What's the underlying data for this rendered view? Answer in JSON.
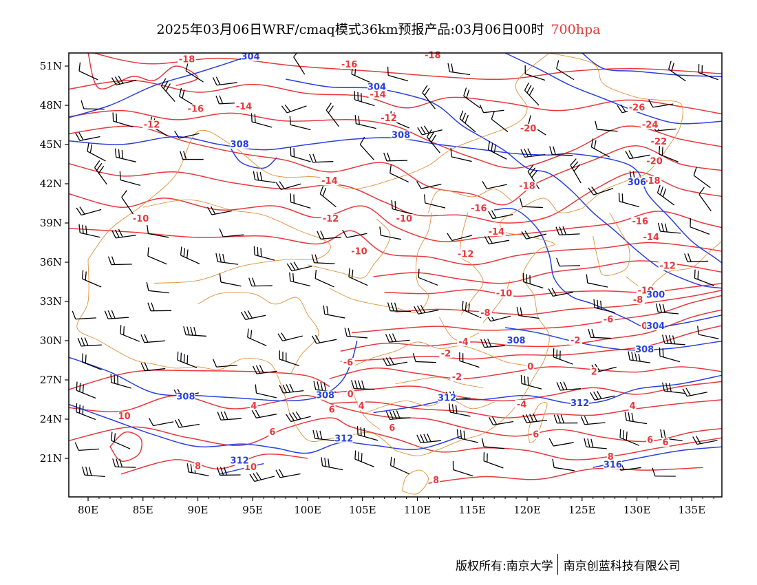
{
  "title": {
    "main": "2025年03月06日WRF/cmaq模式36km预报产品:03月06日00时",
    "level": "700hpa"
  },
  "axes": {
    "x_ticks": [
      "80E",
      "85E",
      "90E",
      "95E",
      "100E",
      "105E",
      "110E",
      "115E",
      "120E",
      "125E",
      "130E",
      "135E"
    ],
    "y_ticks": [
      "51N",
      "48N",
      "45N",
      "42N",
      "39N",
      "36N",
      "33N",
      "30N",
      "27N",
      "24N",
      "21N"
    ]
  },
  "colors": {
    "temperature": "#e8383c",
    "height": "#2a3fe0",
    "boundary": "#e0903a",
    "wind": "#000000"
  },
  "temperature_labels": [
    {
      "text": "-18",
      "lon": 89.0,
      "lat": 51.4
    },
    {
      "text": "-16",
      "lon": 89.8,
      "lat": 47.6
    },
    {
      "text": "-14",
      "lon": 94.2,
      "lat": 47.8
    },
    {
      "text": "-12",
      "lon": 85.8,
      "lat": 46.4
    },
    {
      "text": "-14",
      "lon": 102.0,
      "lat": 42.1
    },
    {
      "text": "-12",
      "lon": 102.1,
      "lat": 39.2
    },
    {
      "text": "-10",
      "lon": 84.8,
      "lat": 39.2
    },
    {
      "text": "-10",
      "lon": 108.8,
      "lat": 39.2
    },
    {
      "text": "-16",
      "lon": 103.8,
      "lat": 51.0
    },
    {
      "text": "-14",
      "lon": 106.4,
      "lat": 48.7
    },
    {
      "text": "-12",
      "lon": 107.4,
      "lat": 46.9
    },
    {
      "text": "-18",
      "lon": 111.4,
      "lat": 51.7
    },
    {
      "text": "-20",
      "lon": 120.1,
      "lat": 46.1
    },
    {
      "text": "-18",
      "lon": 120.0,
      "lat": 41.7
    },
    {
      "text": "-16",
      "lon": 115.6,
      "lat": 40.0
    },
    {
      "text": "-14",
      "lon": 117.2,
      "lat": 38.2
    },
    {
      "text": "-12",
      "lon": 114.4,
      "lat": 36.5
    },
    {
      "text": "-10",
      "lon": 104.7,
      "lat": 36.7
    },
    {
      "text": "-10",
      "lon": 117.9,
      "lat": 33.5
    },
    {
      "text": "-8",
      "lon": 116.2,
      "lat": 32.0
    },
    {
      "text": "-6",
      "lon": 127.4,
      "lat": 31.5
    },
    {
      "text": "-4",
      "lon": 114.2,
      "lat": 29.8
    },
    {
      "text": "-2",
      "lon": 112.6,
      "lat": 28.9
    },
    {
      "text": "0",
      "lon": 120.3,
      "lat": 27.9
    },
    {
      "text": "-2",
      "lon": 124.4,
      "lat": 29.9
    },
    {
      "text": "-2",
      "lon": 113.6,
      "lat": 27.1
    },
    {
      "text": "2",
      "lon": 126.1,
      "lat": 27.5
    },
    {
      "text": "-4",
      "lon": 119.5,
      "lat": 25.0
    },
    {
      "text": "4",
      "lon": 129.6,
      "lat": 24.9
    },
    {
      "text": "6",
      "lon": 131.2,
      "lat": 22.3
    },
    {
      "text": "-26",
      "lon": 130.0,
      "lat": 47.7
    },
    {
      "text": "-24",
      "lon": 131.2,
      "lat": 46.4
    },
    {
      "text": "-22",
      "lon": 132.0,
      "lat": 45.1
    },
    {
      "text": "-20",
      "lon": 131.6,
      "lat": 43.6
    },
    {
      "text": "-18",
      "lon": 131.4,
      "lat": 42.1
    },
    {
      "text": "-16",
      "lon": 130.3,
      "lat": 39.0
    },
    {
      "text": "-14",
      "lon": 131.3,
      "lat": 37.8
    },
    {
      "text": "-12",
      "lon": 132.8,
      "lat": 35.6
    },
    {
      "text": "-10",
      "lon": 130.8,
      "lat": 33.7
    },
    {
      "text": "-8",
      "lon": 130.1,
      "lat": 33.0
    },
    {
      "text": "0",
      "lon": 130.7,
      "lat": 31.0
    },
    {
      "text": "-6",
      "lon": 103.7,
      "lat": 28.2
    },
    {
      "text": "0",
      "lon": 103.9,
      "lat": 25.8
    },
    {
      "text": "4",
      "lon": 104.9,
      "lat": 24.9
    },
    {
      "text": "6",
      "lon": 102.2,
      "lat": 24.6
    },
    {
      "text": "6",
      "lon": 107.7,
      "lat": 23.2
    },
    {
      "text": "4",
      "lon": 95.1,
      "lat": 24.9
    },
    {
      "text": "6",
      "lon": 96.8,
      "lat": 22.9
    },
    {
      "text": "8",
      "lon": 90.0,
      "lat": 20.3
    },
    {
      "text": "10",
      "lon": 83.3,
      "lat": 24.1
    },
    {
      "text": "10",
      "lon": 94.8,
      "lat": 20.2
    },
    {
      "text": "6",
      "lon": 120.8,
      "lat": 22.7
    },
    {
      "text": "8",
      "lon": 127.6,
      "lat": 21.0
    },
    {
      "text": "8",
      "lon": 111.7,
      "lat": 19.2
    },
    {
      "text": "6",
      "lon": 132.6,
      "lat": 22.1
    }
  ],
  "height_labels": [
    {
      "text": "304",
      "lon": 94.8,
      "lat": 51.6
    },
    {
      "text": "304",
      "lon": 106.3,
      "lat": 49.3
    },
    {
      "text": "308",
      "lon": 93.8,
      "lat": 44.9
    },
    {
      "text": "308",
      "lon": 108.5,
      "lat": 45.6
    },
    {
      "text": "306",
      "lon": 130.0,
      "lat": 42.0
    },
    {
      "text": "300",
      "lon": 131.7,
      "lat": 33.4
    },
    {
      "text": "304",
      "lon": 131.7,
      "lat": 31.0
    },
    {
      "text": "308",
      "lon": 119.0,
      "lat": 29.9
    },
    {
      "text": "308",
      "lon": 130.7,
      "lat": 29.2
    },
    {
      "text": "308",
      "lon": 88.9,
      "lat": 25.6
    },
    {
      "text": "308",
      "lon": 101.6,
      "lat": 25.7
    },
    {
      "text": "312",
      "lon": 112.7,
      "lat": 25.5
    },
    {
      "text": "312",
      "lon": 124.8,
      "lat": 25.1
    },
    {
      "text": "312",
      "lon": 103.3,
      "lat": 22.4
    },
    {
      "text": "312",
      "lon": 93.8,
      "lat": 20.7
    },
    {
      "text": "316",
      "lon": 127.8,
      "lat": 20.4
    }
  ],
  "footer": {
    "left": "版权所有:南京大学",
    "right": "南京创蓝科技有限公司"
  }
}
